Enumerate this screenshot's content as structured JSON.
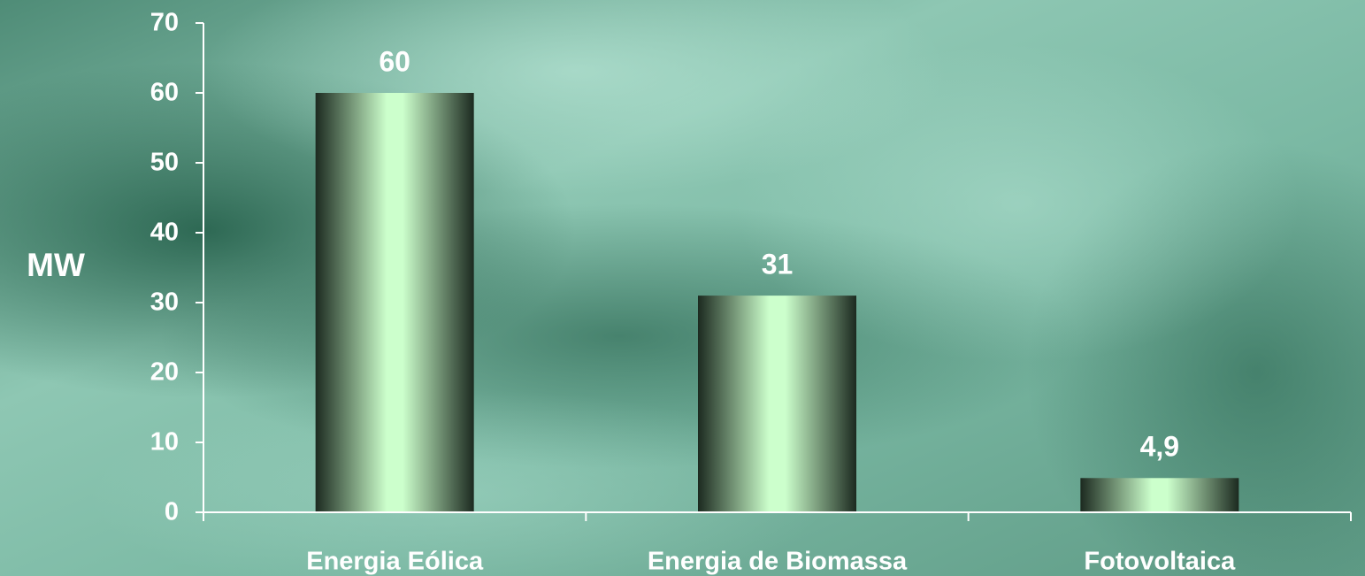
{
  "chart_data": {
    "type": "bar",
    "categories": [
      "Energia Eólica",
      "Energia de Biomassa",
      "Fotovoltaica"
    ],
    "values": [
      60,
      31,
      4.9
    ],
    "value_labels": [
      "60",
      "31",
      "4,9"
    ],
    "ylabel": "MW",
    "xlabel": "",
    "ylim": [
      0,
      70
    ],
    "yticks": [
      0,
      10,
      20,
      30,
      40,
      50,
      60,
      70
    ],
    "grid": false,
    "legend": "none"
  },
  "colors": {
    "bar_light": "#ccffcc",
    "bar_dark": "#1c2a20",
    "axis": "#ffffff",
    "text": "#ffffff",
    "bg_base": "#6fa895",
    "bg_light": "#9cd2bf",
    "bg_dark": "#2e6b55"
  }
}
